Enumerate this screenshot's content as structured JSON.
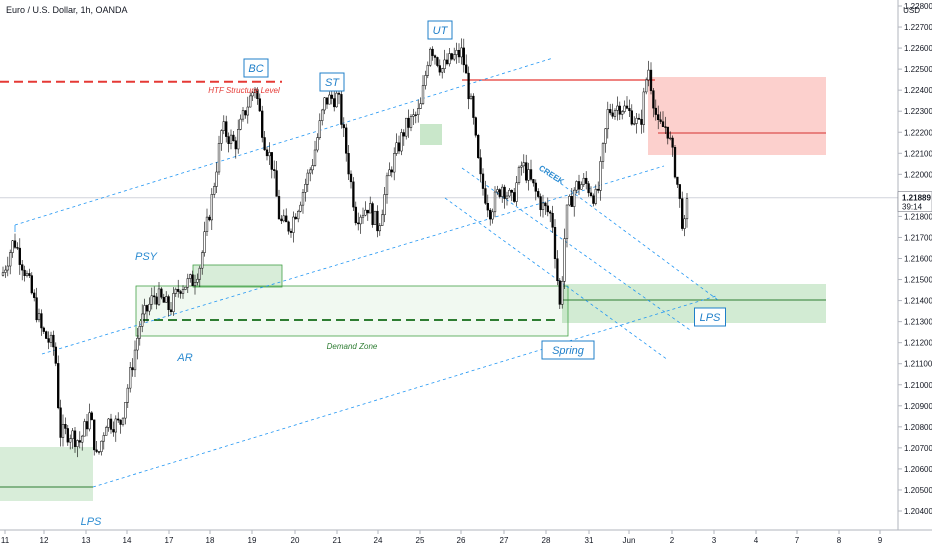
{
  "header": {
    "symbol": "Euro / U.S. Dollar, 1h, OANDA",
    "currency": "USD"
  },
  "price_label": {
    "price": "1.21889",
    "countdown": "39:14"
  },
  "colors": {
    "bull_candle": "#ffffff",
    "bear_candle": "#000000",
    "demand": "#4caf50",
    "supply": "#f44336",
    "channel": "#2196f3",
    "annotation": "#2b8bd1"
  },
  "chart_data": {
    "type": "candlestick",
    "y_axis_side": "right",
    "ylim": [
      1.2036,
      1.2274
    ],
    "y_ticks": [
      "1.22800",
      "1.22700",
      "1.22600",
      "1.22500",
      "1.22400",
      "1.22300",
      "1.22200",
      "1.22100",
      "1.22000",
      "1.21900",
      "1.21800",
      "1.21700",
      "1.21600",
      "1.21500",
      "1.21400",
      "1.21300",
      "1.21200",
      "1.21100",
      "1.21000",
      "1.20900",
      "1.20800",
      "1.20700",
      "1.20600",
      "1.20500",
      "1.20400"
    ],
    "x_ticks": [
      "11",
      "12",
      "13",
      "14",
      "17",
      "18",
      "19",
      "20",
      "21",
      "24",
      "25",
      "26",
      "27",
      "28",
      "31",
      "Jun",
      "2",
      "3",
      "4",
      "7",
      "8",
      "9"
    ],
    "annotations": [
      {
        "text": "BC",
        "boxed": true
      },
      {
        "text": "ST",
        "boxed": true
      },
      {
        "text": "UT",
        "boxed": true
      },
      {
        "text": "PSY",
        "boxed": false
      },
      {
        "text": "AR",
        "boxed": false
      },
      {
        "text": "Spring",
        "boxed": true
      },
      {
        "text": "LPS",
        "boxed": true
      },
      {
        "text": "LPS",
        "boxed": false
      },
      {
        "text": "CREEK",
        "boxed": false
      }
    ],
    "htf_label": "HTF Structure Level",
    "demand_label": "Demand Zone",
    "htf_structure_level": 1.2244
  }
}
